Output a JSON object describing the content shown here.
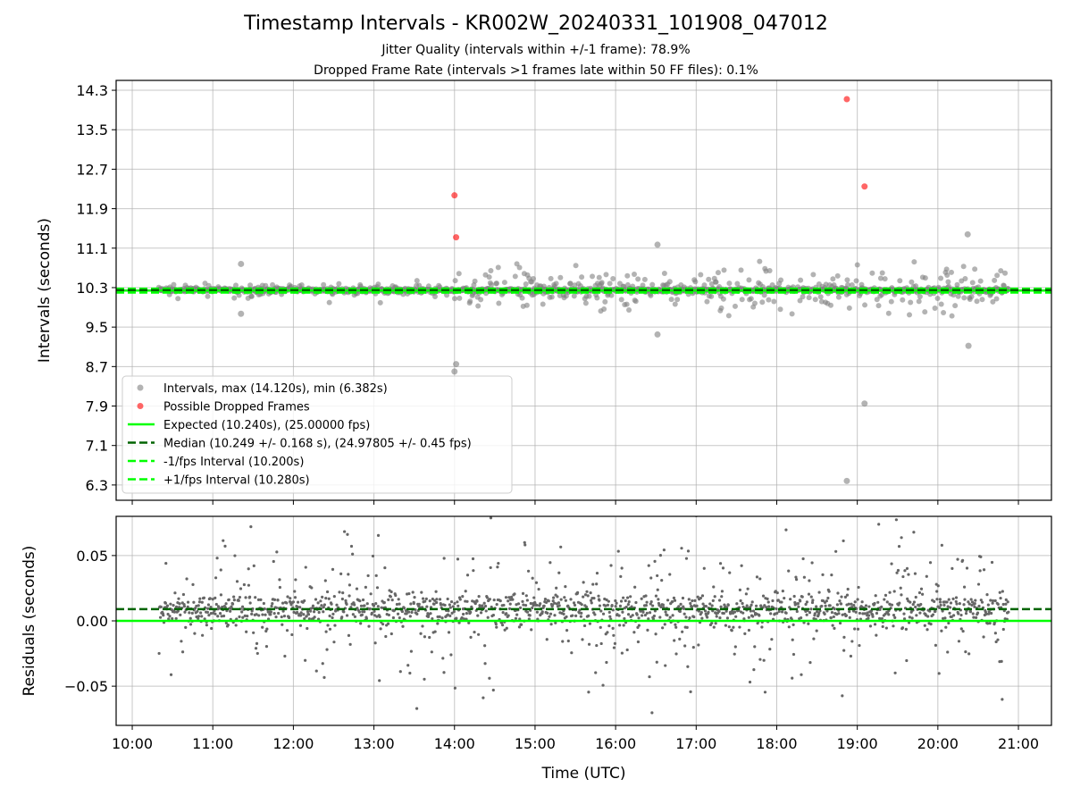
{
  "chart_data": [
    {
      "type": "scatter",
      "title": "Timestamp Intervals - KR002W_20240331_101908_047012",
      "subtitle_1": "Jitter Quality (intervals within +/-1 frame): 78.9%",
      "subtitle_2": "Dropped Frame Rate (intervals >1 frames late within 50 FF files): 0.1%",
      "xlabel": "",
      "ylabel": "Intervals (seconds)",
      "xlim_hours": [
        9.8,
        21.41
      ],
      "ylim": [
        5.99,
        14.5
      ],
      "yticks": [
        "14.3",
        "13.5",
        "12.7",
        "11.9",
        "11.1",
        "10.3",
        "9.5",
        "8.7",
        "7.9",
        "7.1",
        "6.3"
      ],
      "ytick_values": [
        14.3,
        13.5,
        12.7,
        11.9,
        11.1,
        10.3,
        9.5,
        8.7,
        7.9,
        7.1,
        6.3
      ],
      "grid": true,
      "legend_position": "lower-left",
      "legend": [
        "Intervals, max (14.120s), min (6.382s)",
        "Possible Dropped Frames",
        "Expected (10.240s), (25.00000 fps)",
        "Median (10.249 +/- 0.168 s), (24.97805 +/- 0.45 fps)",
        "-1/fps Interval (10.200s)",
        "+1/fps Interval (10.280s)"
      ],
      "lines": {
        "expected": 10.24,
        "median": 10.249,
        "minus_1fps": 10.2,
        "plus_1fps": 10.28
      },
      "data_start_hours": 10.33,
      "data_end_hours": 20.88,
      "dropped_frames": [
        {
          "time_hours": 14.0,
          "interval": 12.17
        },
        {
          "time_hours": 14.02,
          "interval": 11.32
        },
        {
          "time_hours": 18.87,
          "interval": 14.12
        },
        {
          "time_hours": 19.09,
          "interval": 12.35
        }
      ],
      "notable_intervals": [
        {
          "time_hours": 11.35,
          "interval": 10.78
        },
        {
          "time_hours": 11.35,
          "interval": 9.77
        },
        {
          "time_hours": 14.0,
          "interval": 8.6
        },
        {
          "time_hours": 14.02,
          "interval": 8.75
        },
        {
          "time_hours": 16.52,
          "interval": 11.17
        },
        {
          "time_hours": 16.52,
          "interval": 9.35
        },
        {
          "time_hours": 18.87,
          "interval": 6.382
        },
        {
          "time_hours": 19.09,
          "interval": 7.95
        },
        {
          "time_hours": 20.37,
          "interval": 11.38
        },
        {
          "time_hours": 20.38,
          "interval": 9.12
        }
      ],
      "colors": {
        "intervals": "#808080",
        "dropped": "#ff0000",
        "expected": "#00ff00",
        "median": "#006400",
        "fps_bounds": "#00ff00"
      }
    },
    {
      "type": "scatter",
      "xlabel": "Time (UTC)",
      "ylabel": "Residuals (seconds)",
      "xlim_hours": [
        9.8,
        21.41
      ],
      "ylim": [
        -0.08,
        0.08
      ],
      "yticks": [
        "0.05",
        "0.00",
        "−0.05"
      ],
      "ytick_values": [
        0.05,
        0.0,
        -0.05
      ],
      "xticks": [
        "10:00",
        "11:00",
        "12:00",
        "13:00",
        "14:00",
        "15:00",
        "16:00",
        "17:00",
        "18:00",
        "19:00",
        "20:00",
        "21:00"
      ],
      "xtick_values": [
        10,
        11,
        12,
        13,
        14,
        15,
        16,
        17,
        18,
        19,
        20,
        21
      ],
      "grid": true,
      "lines": {
        "zero": 0.0,
        "median_residual": 0.009
      },
      "residual_center": 0.009,
      "residual_core_sd": 0.006,
      "colors": {
        "points": "#666666",
        "zero": "#00ff00",
        "median": "#006400"
      }
    }
  ]
}
